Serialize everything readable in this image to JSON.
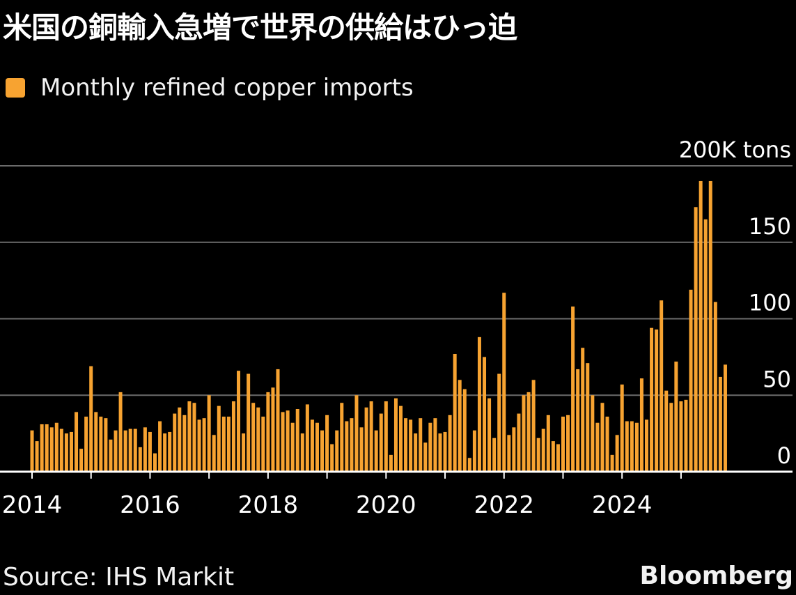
{
  "title": "米国の銅輸入急増で世界の供給はひっ迫",
  "source": "Source: IHS Markit",
  "brand": "Bloomberg",
  "colors": {
    "background": "#000000",
    "bar": "#f7a331",
    "grid": "#6b6b6b",
    "axis": "#ffffff",
    "text": "#ffffff"
  },
  "chart_data": {
    "type": "bar",
    "series": [
      {
        "name": "Monthly refined copper imports",
        "start": "2014-01",
        "frequency": "monthly",
        "values": [
          27,
          20,
          31,
          31,
          29,
          32,
          28,
          25,
          26,
          39,
          15,
          36,
          69,
          39,
          36,
          35,
          21,
          27,
          52,
          27,
          28,
          28,
          16,
          29,
          26,
          12,
          33,
          25,
          26,
          38,
          42,
          37,
          46,
          45,
          34,
          35,
          50,
          24,
          43,
          36,
          36,
          46,
          66,
          25,
          64,
          45,
          42,
          36,
          52,
          55,
          67,
          39,
          40,
          32,
          41,
          25,
          44,
          34,
          32,
          27,
          37,
          18,
          27,
          45,
          33,
          35,
          50,
          29,
          42,
          46,
          27,
          38,
          46,
          11,
          48,
          43,
          35,
          34,
          25,
          35,
          19,
          32,
          35,
          25,
          26,
          37,
          77,
          60,
          54,
          9,
          27,
          88,
          75,
          48,
          22,
          64,
          117,
          24,
          29,
          38,
          50,
          52,
          60,
          22,
          28,
          37,
          20,
          18,
          36,
          37,
          108,
          67,
          81,
          71,
          50,
          32,
          45,
          36,
          11,
          24,
          57,
          33,
          33,
          32,
          61,
          34,
          94,
          93,
          112,
          53,
          45,
          72,
          46,
          47,
          119,
          173,
          190,
          165,
          190,
          111,
          62,
          70
        ]
      }
    ],
    "xticks": [
      "2014",
      "2016",
      "2018",
      "2020",
      "2022",
      "2024"
    ],
    "yticks": [
      "0",
      "50",
      "100",
      "150",
      "200K tons"
    ],
    "ylim": [
      0,
      200
    ],
    "y_unit": "K tons",
    "legend_placement": "top-left",
    "grid": true
  }
}
